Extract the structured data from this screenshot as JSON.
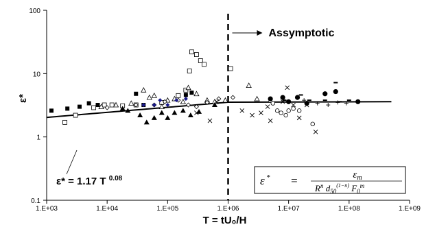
{
  "chart_data": {
    "type": "scatter",
    "title": "",
    "xlabel": "T = tU₀/H",
    "ylabel": "ε*",
    "x_scale": "log",
    "y_scale": "log",
    "xlim": [
      1000,
      1000000000
    ],
    "ylim": [
      0.1,
      100
    ],
    "x_tick_labels": [
      "1.E+03",
      "1.E+04",
      "1.E+05",
      "1.E+06",
      "1.E+07",
      "1.E+08",
      "1.E+09"
    ],
    "y_tick_labels": [
      "0.1",
      "1",
      "10",
      "100"
    ],
    "grid": false,
    "legend": "none",
    "vertical_line": {
      "x": 1000000,
      "style": "dashed"
    },
    "asymptotic_label": "Assymptotic",
    "fit_equation": "ε* = 1.17 T 0.08",
    "fit_line": {
      "coef": 1.17,
      "exponent": 0.08,
      "x_end_fit": 1000000,
      "asymptote_y": 3.6,
      "x_end": 500000000
    },
    "formula_box": {
      "lhs": "ε",
      "lhs_sup": "*",
      "numerator": "ε",
      "numerator_sub": "m",
      "denominator": "R n d 50 (1−n) F 0 m"
    },
    "series": [
      {
        "marker": "filled-square",
        "points": [
          [
            1200,
            2.6
          ],
          [
            2200,
            2.8
          ],
          [
            3500,
            3.0
          ],
          [
            5000,
            3.4
          ],
          [
            7000,
            3.2
          ],
          [
            30000,
            4.8
          ],
          [
            40000,
            3.2
          ],
          [
            200000,
            4.6
          ],
          [
            250000,
            5.0
          ]
        ]
      },
      {
        "marker": "open-square",
        "points": [
          [
            2000,
            1.7
          ],
          [
            3000,
            2.2
          ],
          [
            6000,
            2.9
          ],
          [
            9000,
            3.2
          ],
          [
            12000,
            3.2
          ],
          [
            18000,
            3.1
          ],
          [
            30000,
            3.2
          ],
          [
            80000,
            3.5
          ],
          [
            150000,
            4.5
          ],
          [
            200000,
            5.5
          ],
          [
            230000,
            11
          ],
          [
            250000,
            22
          ],
          [
            300000,
            20
          ],
          [
            350000,
            16
          ],
          [
            400000,
            14
          ],
          [
            1100000,
            12
          ]
        ]
      },
      {
        "marker": "open-triangle",
        "points": [
          [
            8000,
            3.0
          ],
          [
            14000,
            3.2
          ],
          [
            25000,
            3.4
          ],
          [
            40000,
            5.5
          ],
          [
            50000,
            4.2
          ],
          [
            60000,
            4.5
          ],
          [
            80000,
            3.0
          ],
          [
            100000,
            3.8
          ],
          [
            130000,
            4.0
          ],
          [
            180000,
            3.6
          ],
          [
            220000,
            6.0
          ],
          [
            300000,
            4.8
          ],
          [
            450000,
            3.8
          ],
          [
            600000,
            3.6
          ],
          [
            900000,
            3.8
          ],
          [
            2200000,
            6.5
          ],
          [
            3000000,
            4.0
          ],
          [
            5000000,
            3.8
          ]
        ]
      },
      {
        "marker": "filled-triangle",
        "points": [
          [
            18000,
            2.8
          ],
          [
            22000,
            2.6
          ],
          [
            35000,
            2.2
          ],
          [
            45000,
            1.7
          ],
          [
            60000,
            2.0
          ],
          [
            80000,
            2.4
          ],
          [
            100000,
            2.0
          ],
          [
            130000,
            2.4
          ],
          [
            180000,
            2.6
          ],
          [
            240000,
            2.2
          ],
          [
            330000,
            2.5
          ],
          [
            600000,
            3.2
          ]
        ]
      },
      {
        "marker": "open-diamond",
        "points": [
          [
            10000,
            2.9
          ],
          [
            30000,
            3.2
          ],
          [
            60000,
            3.2
          ],
          [
            90000,
            3.6
          ],
          [
            150000,
            3.8
          ],
          [
            220000,
            3.2
          ],
          [
            300000,
            3.0
          ],
          [
            450000,
            3.5
          ],
          [
            700000,
            4.0
          ],
          [
            1200000,
            4.2
          ]
        ]
      },
      {
        "marker": "filled-diamond",
        "points": [
          [
            40000,
            3.2
          ],
          [
            60000,
            3.2
          ],
          [
            75000,
            3.8
          ],
          [
            100000,
            3.2
          ],
          [
            140000,
            3.8
          ],
          [
            200000,
            4.0
          ]
        ]
      },
      {
        "marker": "x",
        "points": [
          [
            300000,
            2.4
          ],
          [
            500000,
            1.8
          ],
          [
            650000,
            3.6
          ],
          [
            1700000,
            2.6
          ],
          [
            2500000,
            2.2
          ],
          [
            3500000,
            2.4
          ],
          [
            4500000,
            3.0
          ],
          [
            5000000,
            1.8
          ],
          [
            8000000,
            3.6
          ],
          [
            9500000,
            6.0
          ],
          [
            12000000,
            3.2
          ],
          [
            15000000,
            2.0
          ],
          [
            20000000,
            3.2
          ],
          [
            28000000,
            1.2
          ]
        ]
      },
      {
        "marker": "open-circle",
        "points": [
          [
            5500000,
            3.4
          ],
          [
            6500000,
            2.6
          ],
          [
            7500000,
            2.4
          ],
          [
            9000000,
            2.2
          ],
          [
            10000000,
            2.6
          ],
          [
            12000000,
            2.8
          ],
          [
            15000000,
            2.6
          ],
          [
            25000000,
            1.6
          ]
        ]
      },
      {
        "marker": "filled-circle",
        "points": [
          [
            5000000,
            4.0
          ],
          [
            8000000,
            4.2
          ],
          [
            10000000,
            3.6
          ],
          [
            14000000,
            4.2
          ],
          [
            20000000,
            3.4
          ],
          [
            40000000,
            4.8
          ],
          [
            60000000,
            5.2
          ],
          [
            140000000,
            3.6
          ]
        ]
      },
      {
        "marker": "dash",
        "points": [
          [
            8500000,
            3.8
          ],
          [
            16000000,
            4.6
          ],
          [
            22000000,
            3.8
          ],
          [
            40000000,
            3.8
          ],
          [
            60000000,
            7.2
          ],
          [
            70000000,
            3.6
          ],
          [
            100000000,
            3.8
          ]
        ]
      },
      {
        "marker": "plus",
        "points": [
          [
            18000000,
            3.8
          ],
          [
            30000000,
            3.4
          ],
          [
            45000000,
            3.2
          ],
          [
            65000000,
            3.5
          ],
          [
            90000000,
            3.4
          ]
        ]
      }
    ]
  }
}
